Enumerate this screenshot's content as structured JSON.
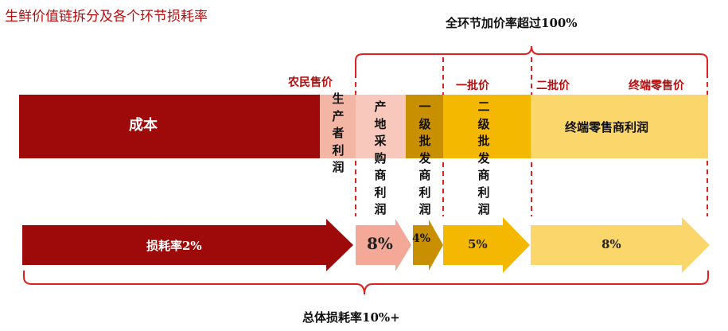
{
  "title": "生鲜价值链拆分及各个环节损耗率",
  "top_caption": "全环节加价率超过100%",
  "bottom_caption": "总体损耗率10%+",
  "price_points": {
    "farmer": "农民售价",
    "first": "一批价",
    "second": "二批价",
    "retail": "终端零售价"
  },
  "segments": {
    "cost": "成本",
    "producer": "生产者利润",
    "origin": "产地采购商利润",
    "first_wholesale": "一级批发商利润",
    "second_wholesale": "二级批发商利润",
    "retail": "终端零售商利润"
  },
  "losses": {
    "base": "损耗率2%",
    "origin": "8%",
    "first": "4%",
    "second": "5%",
    "retail": "8%"
  },
  "colors": {
    "dark_red": "#9e0a0a",
    "pink": "#f4b6a4",
    "salmon": "#f3a898",
    "dark_gold": "#c89000",
    "gold": "#f5b800",
    "light_gold": "#fbd66a",
    "accent_red": "#e02020"
  }
}
